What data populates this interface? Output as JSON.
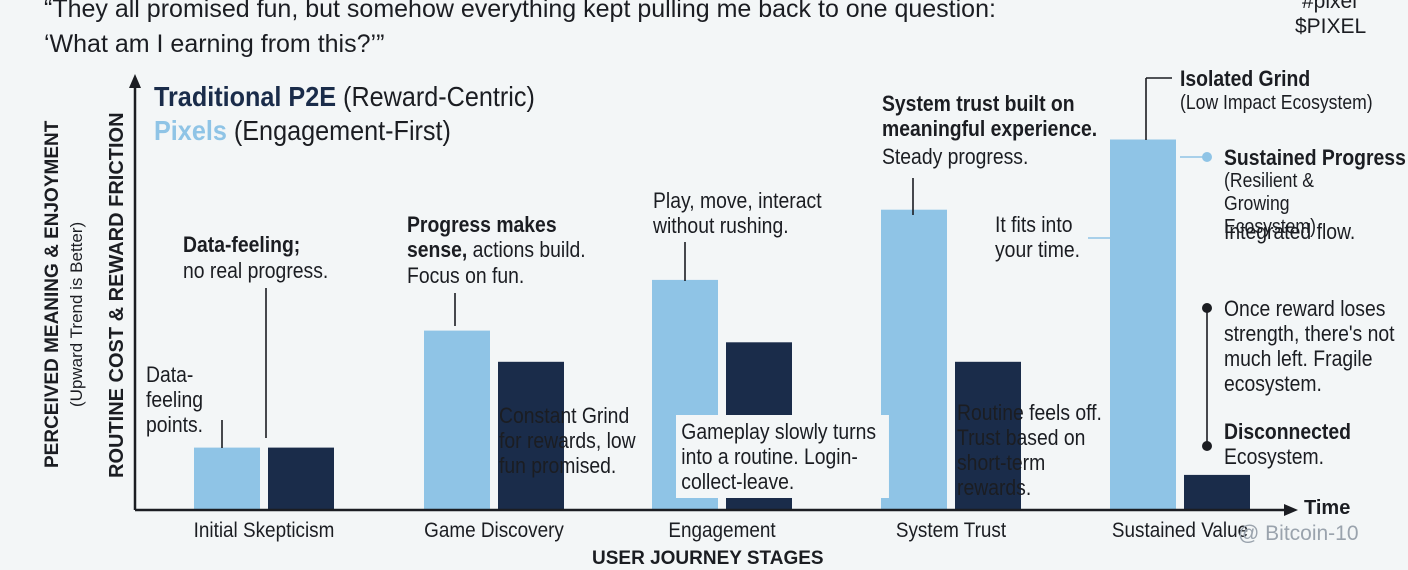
{
  "header": {
    "quote_line1": "“They all promised fun, but somehow everything kept pulling me back to one question:",
    "quote_line2": "‘What am I earning from this?’”",
    "tag_hash": "#pixel",
    "tag_ticker": "$PIXEL"
  },
  "legend": {
    "traditional_name": "Traditional P2E",
    "traditional_desc": "(Reward-Centric)",
    "pixels_name": "Pixels",
    "pixels_desc": "(Engagement-First)"
  },
  "axes": {
    "ylabel_primary": "PERCEIVED MEANING & ENJOYMENT",
    "ylabel_note": "(Upward Trend is Better)",
    "ylabel_secondary": "ROUTINE COST & REWARD FRICTION",
    "xlabel_arrow": "Time",
    "xlabel": "USER JOURNEY STAGES"
  },
  "annotations": {
    "skeptic_pixels": "Data-feeling points.",
    "skeptic_trad_bold": "Data-feeling;",
    "skeptic_trad": "no real progress.",
    "discovery_pixels_bold": "Progress makes",
    "discovery_pixels_bold2": "sense,",
    "discovery_pixels": "actions build.",
    "discovery_pixels2": "Focus on fun.",
    "discovery_trad": "Constant Grind for rewards, low fun promised.",
    "engagement_pixels": "Play, move, interact without rushing.",
    "engagement_trad": "Gameplay slowly turns into a routine. Login-collect-leave.",
    "trust_pixels_bold": "System trust built on meaningful experience.",
    "trust_pixels": "Steady progress.",
    "trust_fits": "It fits into your time.",
    "trust_trad": "Routine feels off. Trust based on short-term rewards.",
    "isolated_bold": "Isolated Grind",
    "isolated": "(Low Impact Ecosystem)",
    "sustained_bold": "Sustained Progress",
    "sustained": "(Resilient & Growing Ecosystem)",
    "integrated": "Integrated flow.",
    "reward_loses": "Once reward loses strength, there's not much left. Fragile ecosystem.",
    "disconnected_bold": "Disconnected",
    "disconnected": "Ecosystem."
  },
  "watermark": "@ Bitcoin-10",
  "colors": {
    "pixels": "#8fc4e6",
    "traditional": "#1a2c4a"
  },
  "chart_data": {
    "type": "bar",
    "title": "",
    "xlabel": "USER JOURNEY STAGES",
    "ylabel": "PERCEIVED MEANING & ENJOYMENT / ROUTINE COST & REWARD FRICTION",
    "categories": [
      "Initial Skepticism",
      "Game Discovery",
      "Engagement",
      "System Trust",
      "Sustained Value"
    ],
    "series": [
      {
        "name": "Pixels (Engagement-First)",
        "values": [
          16,
          46,
          59,
          77,
          95
        ]
      },
      {
        "name": "Traditional P2E (Reward-Centric)",
        "values": [
          16,
          38,
          43,
          38,
          9
        ]
      }
    ],
    "ylim": [
      0,
      100
    ]
  }
}
